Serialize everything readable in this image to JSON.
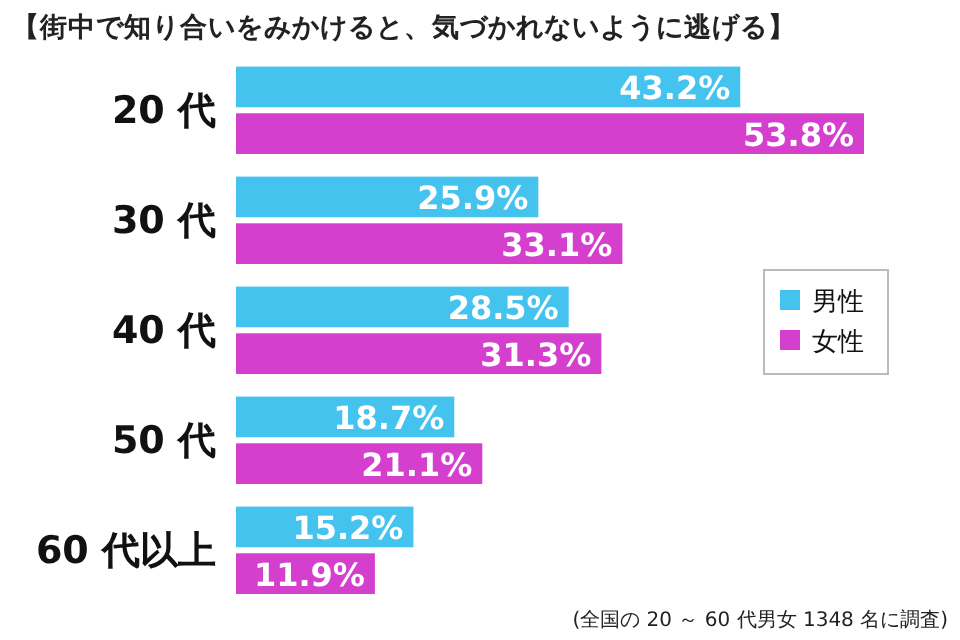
{
  "chart_data": {
    "type": "bar",
    "orientation": "horizontal",
    "title": "【街中で知り合いをみかけると、気づかれないように逃げる】",
    "categories": [
      "20 代",
      "30 代",
      "40 代",
      "50 代",
      "60 代以上"
    ],
    "series": [
      {
        "name": "男性",
        "color": "#45c3ef",
        "values": [
          43.2,
          25.9,
          28.5,
          18.7,
          15.2
        ],
        "value_labels": [
          "43.2%",
          "25.9%",
          "28.5%",
          "18.7%",
          "15.2%"
        ]
      },
      {
        "name": "女性",
        "color": "#d43fce",
        "values": [
          53.8,
          33.1,
          31.3,
          21.1,
          11.9
        ],
        "value_labels": [
          "53.8%",
          "33.1%",
          "31.3%",
          "21.1%",
          "11.9%"
        ]
      }
    ],
    "legend": "right",
    "annotations": [
      "(全国の 20 ～ 60 代男女 1348 名に調査)"
    ]
  }
}
